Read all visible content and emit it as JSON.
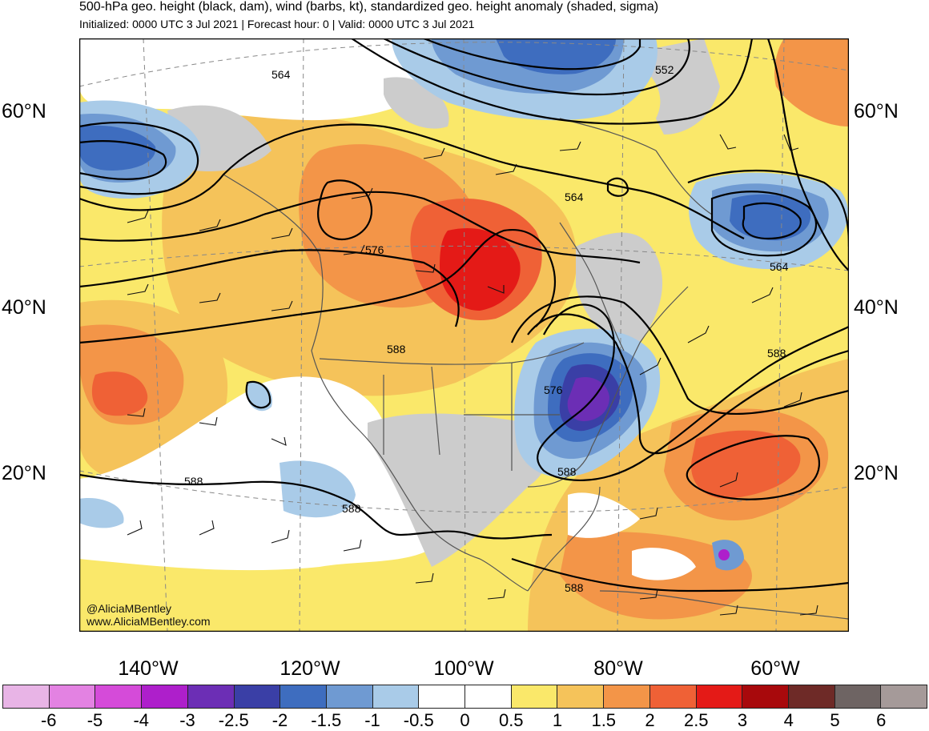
{
  "header": {
    "title": "500-hPa geo. height (black, dam), wind (barbs, kt), standardized geo. height anomaly (shaded, sigma)",
    "subtitle": "Initialized: 0000 UTC 3 Jul 2021 | Forecast hour: 0 | Valid: 0000 UTC 3 Jul 2021"
  },
  "map": {
    "lat_labels": [
      "60°N",
      "40°N",
      "20°N"
    ],
    "lon_labels": [
      "140°W",
      "120°W",
      "100°W",
      "80°W",
      "60°W"
    ],
    "contour_labels": [
      "564",
      "552",
      "564",
      "576",
      "564",
      "588",
      "588",
      "576",
      "588",
      "588",
      "588",
      "588"
    ],
    "credits": [
      "@AliciaMBentley",
      "www.AliciaMBentley.com"
    ]
  },
  "colorbar": {
    "tick_labels": [
      "-6",
      "-5",
      "-4",
      "-3",
      "-2.5",
      "-2",
      "-1.5",
      "-1",
      "-0.5",
      "0",
      "0.5",
      "1",
      "1.5",
      "2",
      "2.5",
      "3",
      "4",
      "5",
      "6"
    ],
    "colors": [
      "#e8b4e6",
      "#e382e2",
      "#d54bd9",
      "#ae1fcb",
      "#6c2eb5",
      "#3a3fa6",
      "#3e6dbf",
      "#6f9ad2",
      "#a9cbe8",
      "#ffffff",
      "#ffffff",
      "#fae86a",
      "#f5c35a",
      "#f39548",
      "#ef6136",
      "#e41a17",
      "#a8090c",
      "#6e2a27",
      "#6e6463",
      "#a59a99"
    ]
  }
}
